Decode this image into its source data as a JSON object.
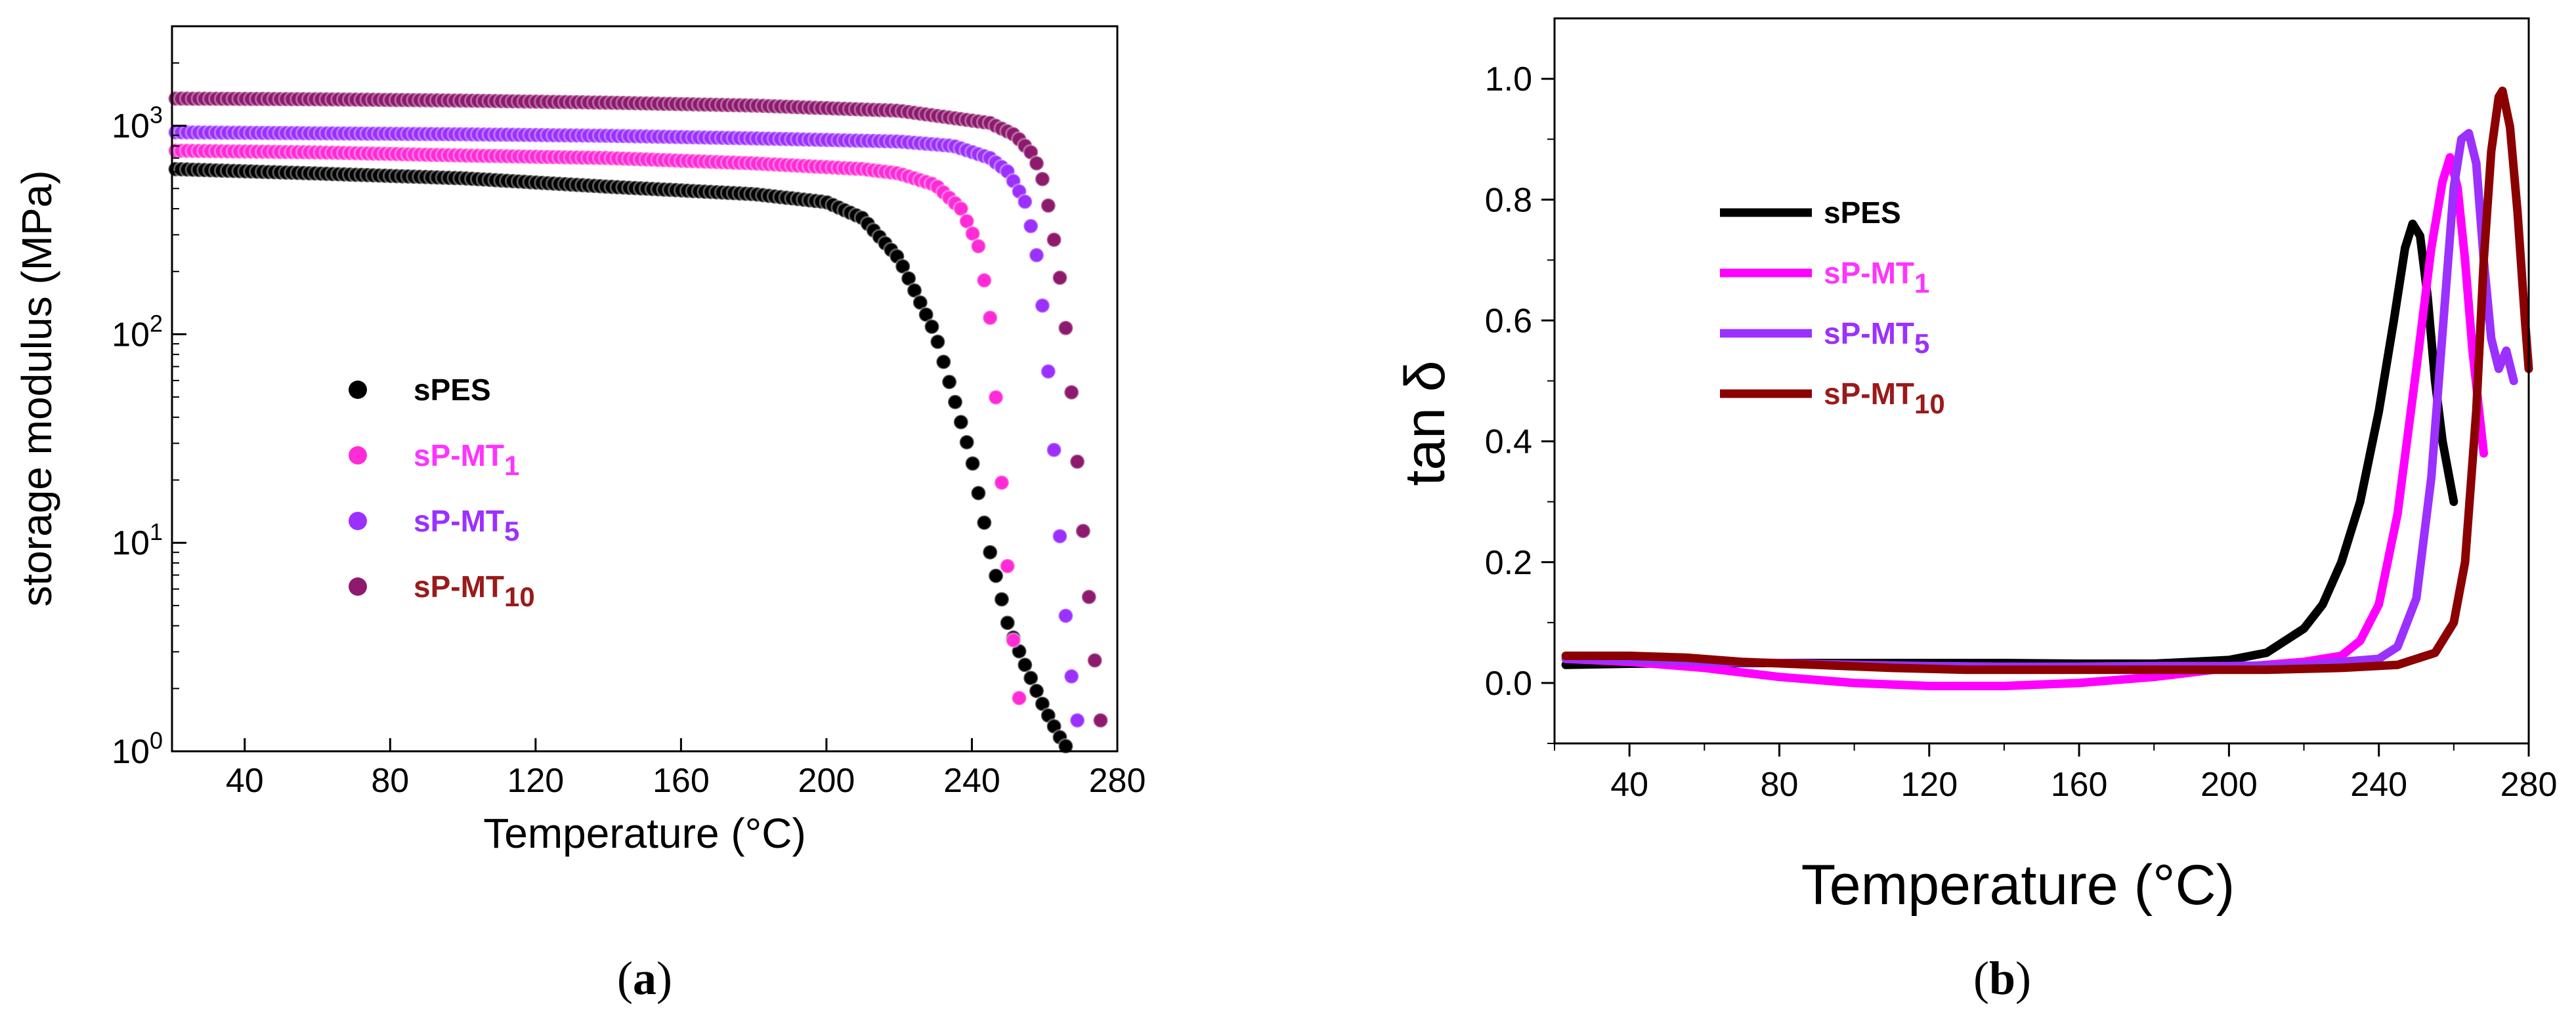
{
  "chart_data": [
    {
      "type": "scatter",
      "panel_label": "a",
      "xlabel": "Temperature (°C)",
      "ylabel": "storage modulus  (MPa)",
      "yscale": "log",
      "xlim": [
        20,
        280
      ],
      "ylim": [
        1,
        3000
      ],
      "x_ticks": [
        "40",
        "80",
        "120",
        "160",
        "200",
        "240",
        "280"
      ],
      "y_ticks": [
        {
          "base": "10",
          "exp": "0"
        },
        {
          "base": "10",
          "exp": "1"
        },
        {
          "base": "10",
          "exp": "2"
        },
        {
          "base": "10",
          "exp": "3"
        }
      ],
      "legend_placement": "center-left",
      "series": [
        {
          "name": "sPES",
          "base": "sPES",
          "sub": "",
          "color": "#000000",
          "label_color": "#000000",
          "points": [
            [
              20,
              620
            ],
            [
              60,
              590
            ],
            [
              100,
              560
            ],
            [
              140,
              510
            ],
            [
              180,
              470
            ],
            [
              200,
              430
            ],
            [
              210,
              360
            ],
            [
              220,
              230
            ],
            [
              230,
              100
            ],
            [
              240,
              25
            ],
            [
              245,
              9
            ],
            [
              250,
              4
            ],
            [
              255,
              2.5
            ],
            [
              260,
              1.6
            ],
            [
              265,
              1.1
            ],
            [
              267,
              1.0
            ]
          ]
        },
        {
          "name": "sP-MT1",
          "base": "sP-MT",
          "sub": "1",
          "color": "#ff2bd6",
          "label_color": "#ff33ff",
          "points": [
            [
              20,
              760
            ],
            [
              60,
              745
            ],
            [
              100,
              720
            ],
            [
              140,
              700
            ],
            [
              180,
              660
            ],
            [
              210,
              620
            ],
            [
              220,
              590
            ],
            [
              230,
              520
            ],
            [
              237,
              400
            ],
            [
              242,
              260
            ],
            [
              245,
              120
            ],
            [
              247,
              40
            ],
            [
              249,
              12
            ],
            [
              251,
              4
            ],
            [
              253,
              1.8
            ],
            [
              254,
              1.1
            ]
          ]
        },
        {
          "name": "sP-MT5",
          "base": "sP-MT",
          "sub": "5",
          "color": "#9b30ff",
          "label_color": "#9b30ff",
          "points": [
            [
              20,
              930
            ],
            [
              60,
              920
            ],
            [
              100,
              910
            ],
            [
              140,
              895
            ],
            [
              180,
              870
            ],
            [
              220,
              840
            ],
            [
              235,
              800
            ],
            [
              245,
              700
            ],
            [
              250,
              600
            ],
            [
              255,
              420
            ],
            [
              258,
              230
            ],
            [
              260,
              110
            ],
            [
              262,
              40
            ],
            [
              264,
              12
            ],
            [
              266,
              4
            ],
            [
              268,
              1.8
            ],
            [
              270,
              1.1
            ]
          ]
        },
        {
          "name": "sP-MT10",
          "base": "sP-MT",
          "sub": "10",
          "color": "#8e1a6e",
          "label_color": "#9a1a1a",
          "points": [
            [
              20,
              1350
            ],
            [
              60,
              1340
            ],
            [
              100,
              1320
            ],
            [
              140,
              1290
            ],
            [
              180,
              1250
            ],
            [
              220,
              1180
            ],
            [
              245,
              1030
            ],
            [
              252,
              900
            ],
            [
              257,
              720
            ],
            [
              260,
              520
            ],
            [
              262,
              330
            ],
            [
              264,
              200
            ],
            [
              266,
              100
            ],
            [
              268,
              40
            ],
            [
              270,
              15
            ],
            [
              272,
              6
            ],
            [
              274,
              2.5
            ],
            [
              276,
              1.1
            ]
          ]
        }
      ]
    },
    {
      "type": "line",
      "panel_label": "b",
      "xlabel": "Temperature (°C)",
      "ylabel": "tan δ",
      "xlim": [
        20,
        280
      ],
      "ylim": [
        -0.1,
        1.1
      ],
      "x_ticks": [
        "40",
        "80",
        "120",
        "160",
        "200",
        "240",
        "280"
      ],
      "y_ticks": [
        "0.0",
        "0.2",
        "0.4",
        "0.6",
        "0.8",
        "1.0"
      ],
      "legend_placement": "upper-left",
      "series": [
        {
          "name": "sPES",
          "base": "sPES",
          "sub": "",
          "color": "#000000",
          "label_color": "#000000",
          "x": [
            23,
            40,
            60,
            80,
            100,
            120,
            140,
            160,
            180,
            200,
            210,
            220,
            225,
            230,
            235,
            240,
            244,
            247,
            249,
            251,
            253,
            255,
            257,
            260
          ],
          "y": [
            0.03,
            0.032,
            0.033,
            0.033,
            0.033,
            0.033,
            0.033,
            0.032,
            0.032,
            0.038,
            0.05,
            0.09,
            0.13,
            0.2,
            0.3,
            0.45,
            0.6,
            0.72,
            0.76,
            0.74,
            0.64,
            0.5,
            0.4,
            0.3
          ]
        },
        {
          "name": "sP-MT1",
          "base": "sP-MT",
          "sub": "1",
          "color": "#ff00ff",
          "label_color": "#ff33ff",
          "x": [
            23,
            40,
            60,
            80,
            100,
            120,
            140,
            160,
            180,
            200,
            220,
            230,
            235,
            240,
            245,
            250,
            254,
            257,
            259,
            261,
            263,
            265,
            268
          ],
          "y": [
            0.04,
            0.035,
            0.025,
            0.01,
            0.0,
            -0.005,
            -0.005,
            0.0,
            0.01,
            0.025,
            0.035,
            0.045,
            0.07,
            0.13,
            0.28,
            0.52,
            0.72,
            0.83,
            0.87,
            0.82,
            0.7,
            0.55,
            0.38
          ]
        },
        {
          "name": "sP-MT5",
          "base": "sP-MT",
          "sub": "5",
          "color": "#9b30ff",
          "label_color": "#9b30ff",
          "x": [
            23,
            40,
            60,
            80,
            100,
            120,
            140,
            160,
            180,
            200,
            220,
            240,
            245,
            250,
            254,
            257,
            260,
            262,
            264,
            266,
            268,
            270,
            272,
            274,
            276
          ],
          "y": [
            0.04,
            0.038,
            0.035,
            0.033,
            0.03,
            0.028,
            0.027,
            0.027,
            0.028,
            0.028,
            0.03,
            0.04,
            0.06,
            0.14,
            0.34,
            0.58,
            0.82,
            0.9,
            0.91,
            0.86,
            0.7,
            0.57,
            0.52,
            0.55,
            0.5
          ]
        },
        {
          "name": "sP-MT10",
          "base": "sP-MT",
          "sub": "10",
          "color": "#8b0000",
          "label_color": "#9a1a1a",
          "x": [
            23,
            40,
            55,
            70,
            90,
            110,
            130,
            150,
            170,
            190,
            210,
            230,
            245,
            255,
            260,
            263,
            266,
            268,
            270,
            272,
            273,
            275,
            277,
            279,
            280
          ],
          "y": [
            0.045,
            0.045,
            0.042,
            0.035,
            0.03,
            0.025,
            0.022,
            0.022,
            0.022,
            0.022,
            0.022,
            0.025,
            0.03,
            0.05,
            0.1,
            0.2,
            0.45,
            0.7,
            0.88,
            0.97,
            0.98,
            0.92,
            0.78,
            0.6,
            0.52
          ]
        }
      ]
    }
  ]
}
